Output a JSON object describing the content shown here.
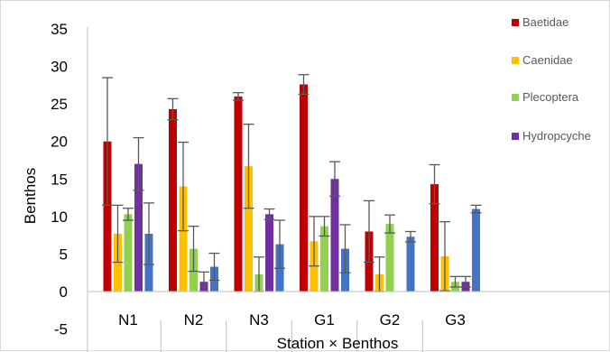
{
  "chart_data": {
    "type": "bar",
    "categories": [
      "N1",
      "N2",
      "N3",
      "G1",
      "G2",
      "G3"
    ],
    "xlabel": "Station ×  Benthos",
    "ylabel": "Benthos",
    "ylim": [
      -5,
      35
    ],
    "yticks": [
      -5,
      0,
      5,
      10,
      15,
      20,
      25,
      30,
      35
    ],
    "grid": false,
    "legend_position": "top-right",
    "error_bars": true,
    "series": [
      {
        "name": "Baetidae",
        "color": "#c00000",
        "values": [
          20,
          24.3,
          26,
          27.6,
          8,
          14.3
        ],
        "errors": [
          8.5,
          1.4,
          0.5,
          1.3,
          4.1,
          2.6
        ]
      },
      {
        "name": "Caenidae",
        "color": "#ffc000",
        "values": [
          7.7,
          14,
          16.7,
          6.7,
          2.3,
          4.7
        ],
        "errors": [
          3.8,
          5.9,
          5.6,
          3.3,
          2.3,
          4.6
        ]
      },
      {
        "name": "Plecoptera",
        "color": "#92d050",
        "values": [
          10.3,
          5.7,
          2.3,
          8.7,
          9,
          1.3
        ],
        "errors": [
          0.8,
          3,
          2.3,
          1.3,
          1.2,
          0.7
        ]
      },
      {
        "name": "Hydropcyche",
        "color": "#7030a0",
        "values": [
          17,
          1.3,
          10.3,
          15,
          0,
          1.3
        ],
        "errors": [
          3.5,
          1.3,
          0.7,
          2.3,
          0,
          0.7
        ]
      },
      {
        "name": "",
        "color": "#4472c4",
        "values": [
          7.7,
          3.3,
          6.3,
          5.7,
          7.3,
          11
        ],
        "errors": [
          4.1,
          1.8,
          3.2,
          3.2,
          0.7,
          0.5
        ]
      }
    ]
  }
}
